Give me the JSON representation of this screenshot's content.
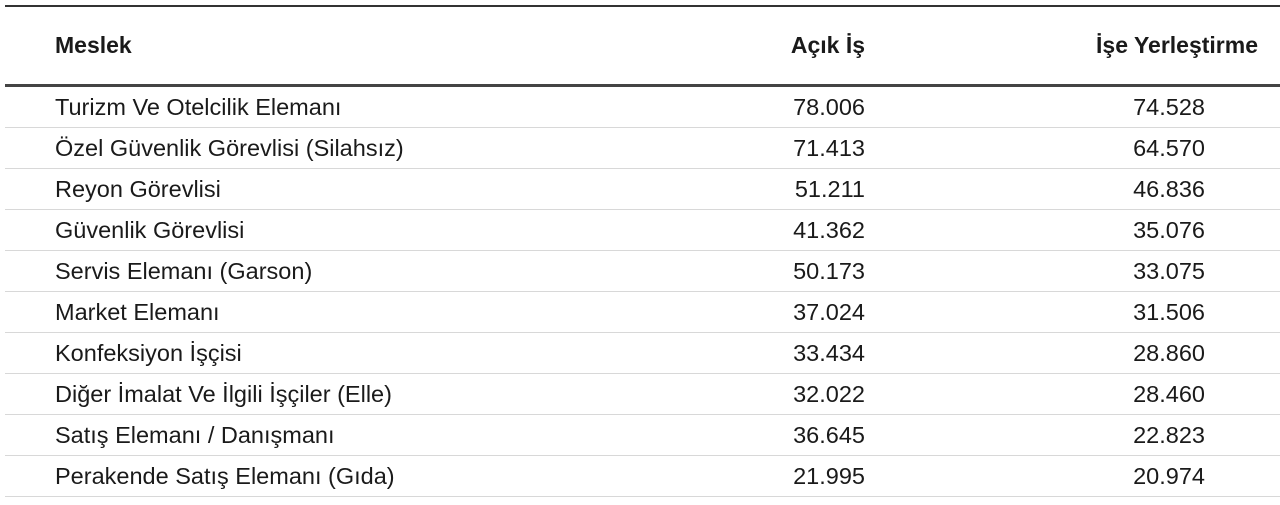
{
  "table": {
    "headers": [
      "Meslek",
      "Açık İş",
      "İşe Yerleştirme"
    ],
    "rows": [
      [
        "Turizm Ve Otelcilik Elemanı",
        "78.006",
        "74.528"
      ],
      [
        "Özel Güvenlik Görevlisi (Silahsız)",
        "71.413",
        "64.570"
      ],
      [
        "Reyon Görevlisi",
        "51.211",
        "46.836"
      ],
      [
        "Güvenlik Görevlisi",
        "41.362",
        "35.076"
      ],
      [
        "Servis Elemanı (Garson)",
        "50.173",
        "33.075"
      ],
      [
        "Market Elemanı",
        "37.024",
        "31.506"
      ],
      [
        "Konfeksiyon İşçisi",
        "33.434",
        "28.860"
      ],
      [
        "Diğer İmalat Ve İlgili İşçiler (Elle)",
        "32.022",
        "28.460"
      ],
      [
        "Satış Elemanı / Danışmanı",
        "36.645",
        "22.823"
      ],
      [
        "Perakende Satış Elemanı (Gıda)",
        "21.995",
        "20.974"
      ]
    ]
  }
}
